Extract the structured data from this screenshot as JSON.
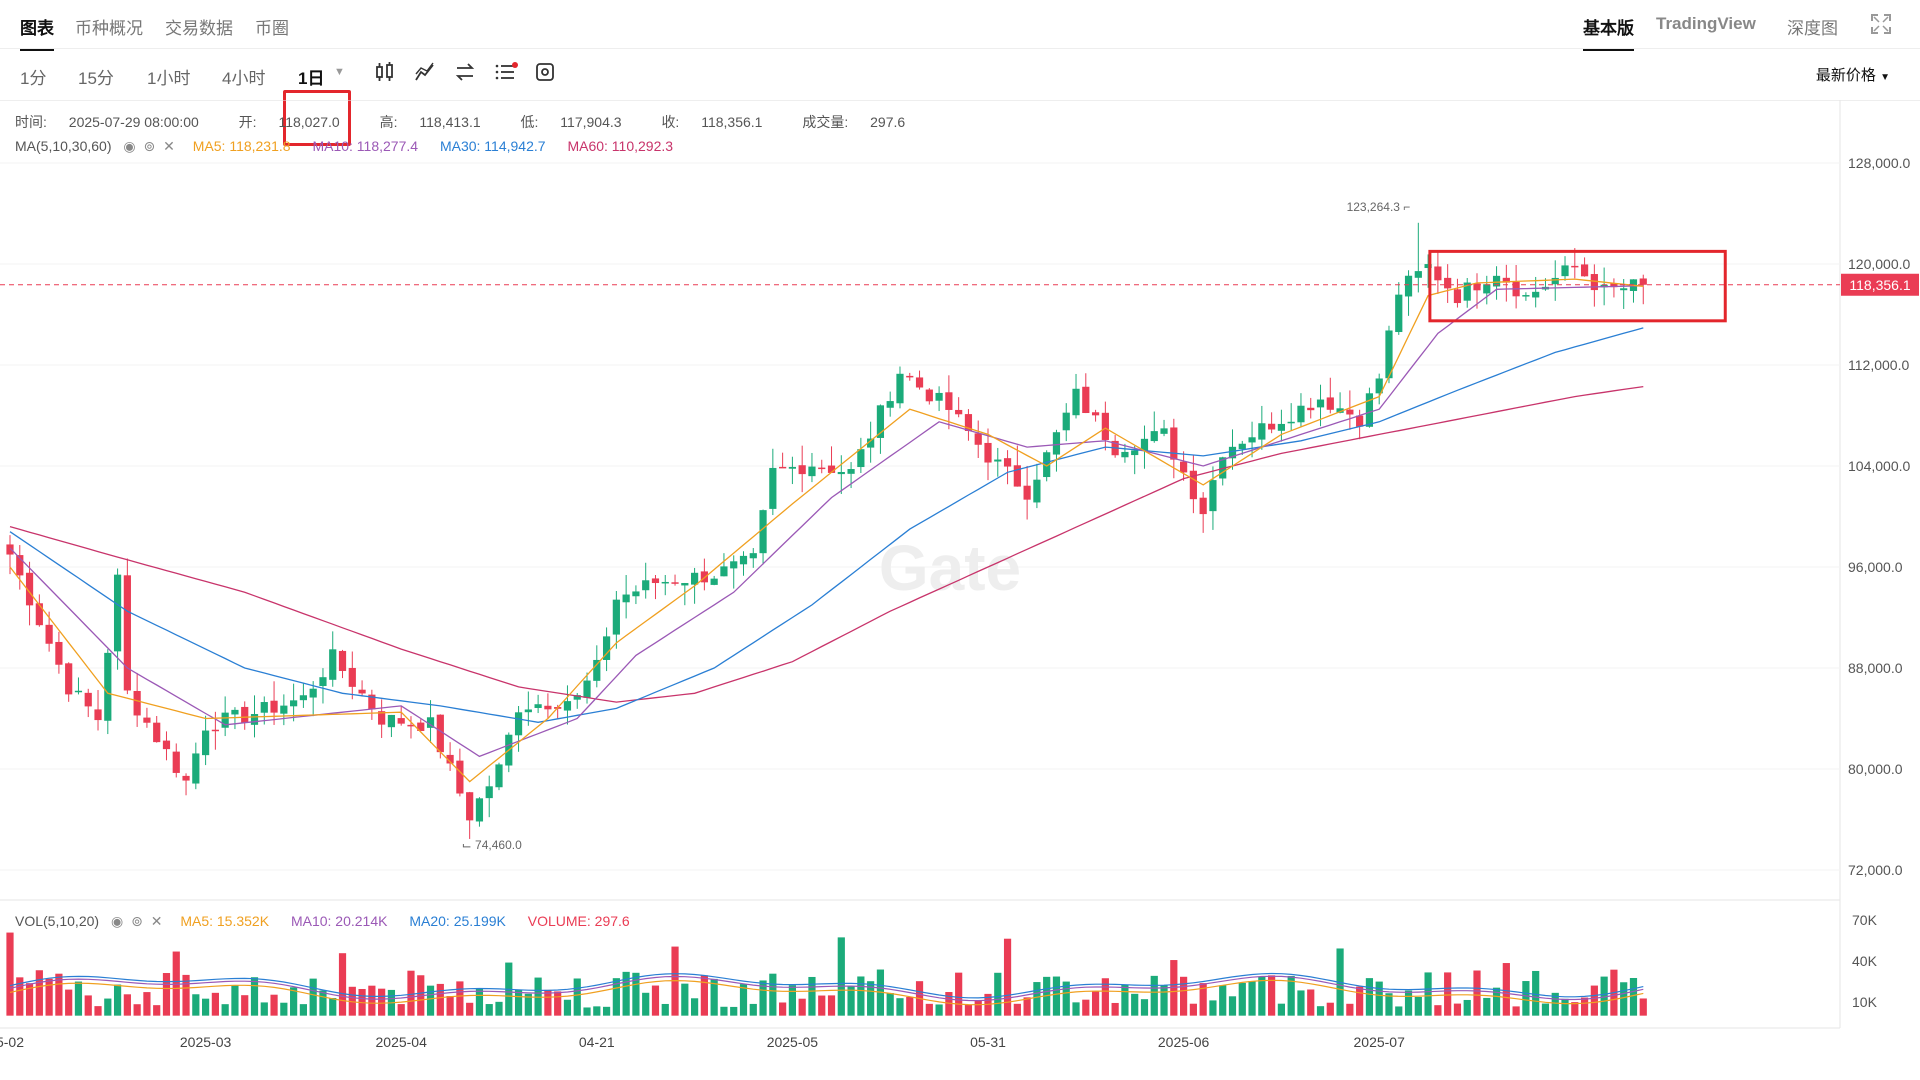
{
  "tabs": {
    "chart": "图表",
    "coin_overview": "币种概况",
    "trading_data": "交易数据",
    "coin_circle": "币圈",
    "basic": "基本版",
    "tradingview": "TradingView",
    "depth": "深度图"
  },
  "intervals": [
    "1分",
    "15分",
    "1小时",
    "4小时"
  ],
  "selected_interval": "1日",
  "price_mode": "最新价格",
  "icons": {
    "candle": "candlestick-icon",
    "indicator": "indicator-icon",
    "swap": "swap-icon",
    "list": "list-settings-icon",
    "settings": "chart-settings-icon",
    "expand": "fullscreen-icon"
  },
  "ohlc": {
    "time_label": "时间:",
    "time": "2025-07-29 08:00:00",
    "open_label": "开:",
    "open": "118,027.0",
    "high_label": "高:",
    "high": "118,413.1",
    "low_label": "低:",
    "low": "117,904.3",
    "close_label": "收:",
    "close": "118,356.1",
    "vol_label": "成交量:",
    "vol": "297.6"
  },
  "ma": {
    "label": "MA(5,10,30,60)",
    "ma5": "MA5: 118,231.8",
    "ma10": "MA10: 118,277.4",
    "ma30": "MA30: 114,942.7",
    "ma60": "MA60: 110,292.3"
  },
  "vol": {
    "label": "VOL(5,10,20)",
    "ma5": "MA5: 15.352K",
    "ma10": "MA10: 20.214K",
    "ma20": "MA20: 25.199K",
    "volume": "VOLUME: 297.6"
  },
  "colors": {
    "up": "#1bab7a",
    "down": "#ea3c54",
    "ma5": "#f0a020",
    "ma10": "#9b59b6",
    "ma30": "#2a7fd4",
    "ma60": "#c8346b",
    "highlight": "#e3262c"
  },
  "chart_data": {
    "type": "candlestick",
    "price_axis": {
      "ticks": [
        "128,000.0",
        "120,000.0",
        "112,000.0",
        "104,000.0",
        "96,000.0",
        "88,000.0",
        "80,000.0",
        "72,000.0"
      ],
      "tick_values": [
        128000,
        120000,
        112000,
        104000,
        96000,
        88000,
        80000,
        72000
      ]
    },
    "volume_axis": {
      "ticks": [
        "70K",
        "40K",
        "10K"
      ],
      "tick_values": [
        70000,
        40000,
        10000
      ]
    },
    "x_labels": [
      "5-02",
      "2025-03",
      "2025-04",
      "04-21",
      "2025-05",
      "05-31",
      "2025-06",
      "2025-07"
    ],
    "x_label_indices": [
      0,
      20,
      40,
      60,
      80,
      100,
      120,
      140
    ],
    "current_price": "118,356.1",
    "current_price_value": 118356.1,
    "high_marker": "123,264.3",
    "high_marker_index": 144,
    "low_marker": "74,460.0",
    "low_marker_index": 47,
    "highlight_range": {
      "start_index": 146,
      "end_index": 167,
      "low": 115500,
      "high": 121000
    },
    "close_anchors": [
      {
        "i": 0,
        "v": 97000
      },
      {
        "i": 6,
        "v": 86500
      },
      {
        "i": 9,
        "v": 84000
      },
      {
        "i": 11,
        "v": 95000
      },
      {
        "i": 12,
        "v": 86000
      },
      {
        "i": 18,
        "v": 79000
      },
      {
        "i": 20,
        "v": 83500
      },
      {
        "i": 24,
        "v": 84200
      },
      {
        "i": 30,
        "v": 85600
      },
      {
        "i": 33,
        "v": 88800
      },
      {
        "i": 38,
        "v": 84000
      },
      {
        "i": 43,
        "v": 83500
      },
      {
        "i": 47,
        "v": 76300
      },
      {
        "i": 50,
        "v": 80000
      },
      {
        "i": 52,
        "v": 85000
      },
      {
        "i": 58,
        "v": 85600
      },
      {
        "i": 60,
        "v": 88000
      },
      {
        "i": 62,
        "v": 93500
      },
      {
        "i": 66,
        "v": 94800
      },
      {
        "i": 72,
        "v": 95400
      },
      {
        "i": 76,
        "v": 96500
      },
      {
        "i": 78,
        "v": 103500
      },
      {
        "i": 82,
        "v": 104200
      },
      {
        "i": 86,
        "v": 103500
      },
      {
        "i": 88,
        "v": 106500
      },
      {
        "i": 91,
        "v": 111500
      },
      {
        "i": 96,
        "v": 108500
      },
      {
        "i": 100,
        "v": 104800
      },
      {
        "i": 104,
        "v": 102000
      },
      {
        "i": 106,
        "v": 104800
      },
      {
        "i": 109,
        "v": 109600
      },
      {
        "i": 113,
        "v": 105500
      },
      {
        "i": 118,
        "v": 106500
      },
      {
        "i": 122,
        "v": 100500
      },
      {
        "i": 124,
        "v": 105300
      },
      {
        "i": 129,
        "v": 107400
      },
      {
        "i": 134,
        "v": 109400
      },
      {
        "i": 138,
        "v": 107800
      },
      {
        "i": 140,
        "v": 111000
      },
      {
        "i": 142,
        "v": 117800
      },
      {
        "i": 145,
        "v": 119800
      },
      {
        "i": 148,
        "v": 117500
      },
      {
        "i": 152,
        "v": 119500
      },
      {
        "i": 155,
        "v": 117400
      },
      {
        "i": 160,
        "v": 119800
      },
      {
        "i": 163,
        "v": 117800
      },
      {
        "i": 167,
        "v": 118356
      }
    ],
    "candle_count": 168,
    "ma_lines": {
      "ma5_anchors": [
        [
          0,
          96000
        ],
        [
          10,
          86000
        ],
        [
          20,
          84000
        ],
        [
          40,
          84500
        ],
        [
          47,
          79000
        ],
        [
          55,
          84000
        ],
        [
          62,
          90000
        ],
        [
          70,
          94500
        ],
        [
          80,
          101000
        ],
        [
          92,
          108500
        ],
        [
          100,
          106500
        ],
        [
          106,
          104000
        ],
        [
          112,
          107000
        ],
        [
          122,
          102500
        ],
        [
          130,
          106500
        ],
        [
          140,
          109500
        ],
        [
          145,
          117500
        ],
        [
          150,
          118500
        ],
        [
          160,
          118800
        ],
        [
          167,
          118231
        ]
      ],
      "ma10_anchors": [
        [
          0,
          97500
        ],
        [
          12,
          88000
        ],
        [
          22,
          83500
        ],
        [
          40,
          85000
        ],
        [
          48,
          81000
        ],
        [
          58,
          84000
        ],
        [
          64,
          89000
        ],
        [
          74,
          94000
        ],
        [
          84,
          101500
        ],
        [
          95,
          107500
        ],
        [
          104,
          105500
        ],
        [
          112,
          106000
        ],
        [
          122,
          104000
        ],
        [
          132,
          106500
        ],
        [
          140,
          108500
        ],
        [
          146,
          114500
        ],
        [
          152,
          118000
        ],
        [
          167,
          118277
        ]
      ],
      "ma30_anchors": [
        [
          0,
          98800
        ],
        [
          12,
          92500
        ],
        [
          24,
          88000
        ],
        [
          34,
          86000
        ],
        [
          44,
          85000
        ],
        [
          54,
          83700
        ],
        [
          62,
          84800
        ],
        [
          72,
          88000
        ],
        [
          82,
          93000
        ],
        [
          92,
          99000
        ],
        [
          102,
          103500
        ],
        [
          112,
          105500
        ],
        [
          122,
          104800
        ],
        [
          132,
          106000
        ],
        [
          140,
          107500
        ],
        [
          148,
          110000
        ],
        [
          158,
          113000
        ],
        [
          167,
          114942
        ]
      ],
      "ma60_anchors": [
        [
          0,
          99200
        ],
        [
          10,
          97000
        ],
        [
          24,
          94000
        ],
        [
          40,
          89500
        ],
        [
          52,
          86500
        ],
        [
          62,
          85300
        ],
        [
          70,
          86000
        ],
        [
          80,
          88500
        ],
        [
          90,
          92500
        ],
        [
          100,
          96000
        ],
        [
          110,
          99500
        ],
        [
          120,
          103000
        ],
        [
          130,
          105000
        ],
        [
          140,
          106500
        ],
        [
          150,
          108000
        ],
        [
          160,
          109500
        ],
        [
          167,
          110292
        ]
      ]
    }
  }
}
